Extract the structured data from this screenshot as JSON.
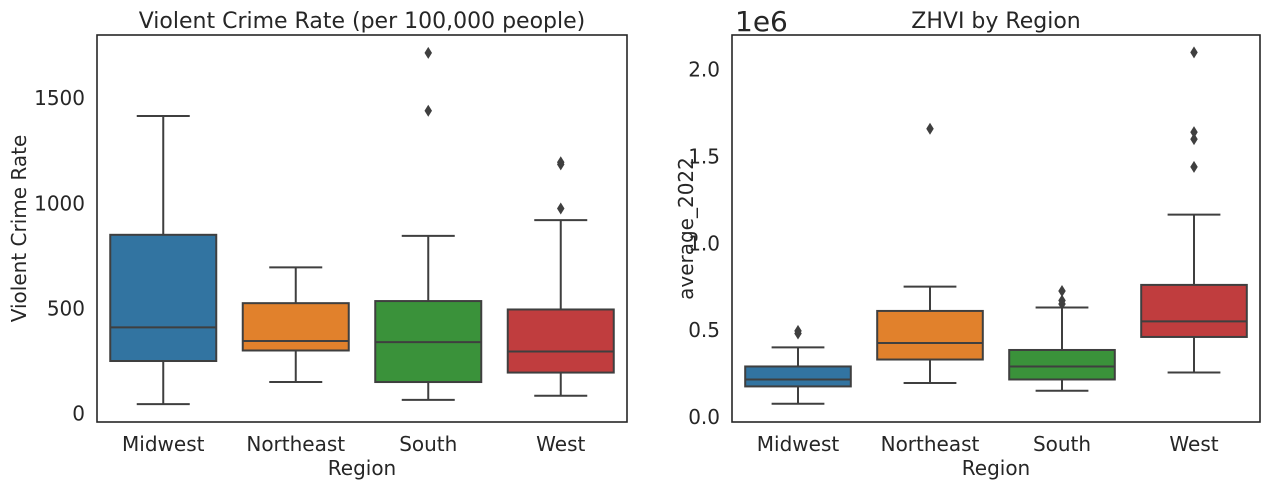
{
  "chart_data": [
    {
      "type": "box",
      "title": "Violent Crime Rate (per 100,000 people)",
      "xlabel": "Region",
      "ylabel": "Violent Crime Rate",
      "ylim": [
        -40,
        1800
      ],
      "yticks": [
        0,
        500,
        1000,
        1500
      ],
      "ytick_labels": [
        "0",
        "500",
        "1000",
        "1500"
      ],
      "offset_text": "",
      "categories": [
        "Midwest",
        "Northeast",
        "South",
        "West"
      ],
      "colors": [
        "#3274a1",
        "#e1812c",
        "#3a923a",
        "#c03d3e"
      ],
      "boxes": [
        {
          "whislo": 45,
          "q1": 250,
          "med": 410,
          "q3": 850,
          "whishi": 1415,
          "fliers": []
        },
        {
          "whislo": 150,
          "q1": 300,
          "med": 345,
          "q3": 525,
          "whishi": 695,
          "fliers": []
        },
        {
          "whislo": 65,
          "q1": 150,
          "med": 340,
          "q3": 535,
          "whishi": 845,
          "fliers": [
            1440,
            1715
          ]
        },
        {
          "whislo": 85,
          "q1": 195,
          "med": 295,
          "q3": 495,
          "whishi": 920,
          "fliers": [
            975,
            1185,
            1195
          ]
        }
      ]
    },
    {
      "type": "box",
      "title": "ZHVI by Region",
      "xlabel": "Region",
      "ylabel": "average_2022",
      "ylim": [
        -30000,
        2200000
      ],
      "yticks": [
        0,
        500000,
        1000000,
        1500000,
        2000000
      ],
      "ytick_labels": [
        "0.0",
        "0.5",
        "1.0",
        "1.5",
        "2.0"
      ],
      "offset_text": "1e6",
      "categories": [
        "Midwest",
        "Northeast",
        "South",
        "West"
      ],
      "colors": [
        "#3274a1",
        "#e1812c",
        "#3a923a",
        "#c03d3e"
      ],
      "boxes": [
        {
          "whislo": 75000,
          "q1": 175000,
          "med": 215000,
          "q3": 290000,
          "whishi": 400000,
          "fliers": [
            480000,
            495000
          ]
        },
        {
          "whislo": 195000,
          "q1": 330000,
          "med": 425000,
          "q3": 610000,
          "whishi": 750000,
          "fliers": [
            1660000
          ]
        },
        {
          "whislo": 150000,
          "q1": 215000,
          "med": 290000,
          "q3": 385000,
          "whishi": 630000,
          "fliers": [
            650000,
            670000,
            725000
          ]
        },
        {
          "whislo": 255000,
          "q1": 460000,
          "med": 550000,
          "q3": 760000,
          "whishi": 1165000,
          "fliers": [
            1440000,
            1600000,
            1640000,
            2100000
          ]
        }
      ]
    }
  ]
}
